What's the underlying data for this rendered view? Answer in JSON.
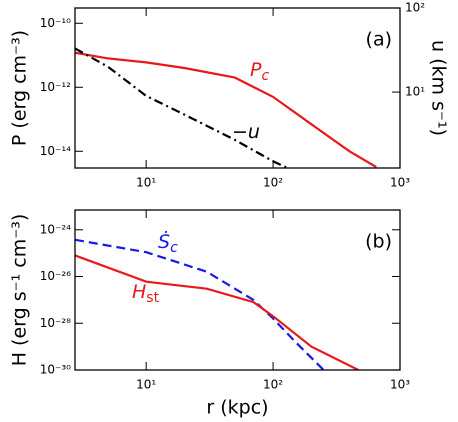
{
  "chart_data": [
    {
      "type": "line",
      "log_x": true,
      "log_y": true,
      "panel_label": "(a)",
      "ylabel": "P (erg cm⁻³)",
      "y2label": "u (km s⁻¹)",
      "xlim": [
        2.75,
        1000
      ],
      "xticks": [
        {
          "value": 10,
          "label": "10¹"
        },
        {
          "value": 100,
          "label": "10²"
        },
        {
          "value": 1000,
          "label": "10³"
        }
      ],
      "ylim": [
        3e-15,
        3e-10
      ],
      "yticks": [
        {
          "value": 1e-10,
          "label": "10⁻¹⁰"
        },
        {
          "value": 1e-12,
          "label": "10⁻¹²"
        },
        {
          "value": 1e-14,
          "label": "10⁻¹⁴"
        }
      ],
      "y2lim": [
        1.25,
        100
      ],
      "y2ticks": [
        {
          "value": 10,
          "label": "10¹"
        },
        {
          "value": 100,
          "label": "10²"
        }
      ],
      "series": [
        {
          "label": {
            "main": "P",
            "sub": "c"
          },
          "color": "#e8191c",
          "linestyle": "solid",
          "x": [
            2.75,
            5,
            10,
            20,
            50,
            100,
            200,
            400,
            650
          ],
          "values": [
            1.2e-11,
            8e-12,
            6e-12,
            4e-12,
            2e-12,
            5e-13,
            7e-14,
            1e-14,
            3.2e-15
          ]
        },
        {
          "label": {
            "main": "−u",
            "sub": ""
          },
          "color": "#000000",
          "linestyle": "dashdot",
          "axis": "y2",
          "x": [
            2.75,
            5,
            10,
            20,
            50,
            100,
            130
          ],
          "values": [
            33,
            20,
            9,
            5.4,
            2.7,
            1.5,
            1.25
          ]
        }
      ]
    },
    {
      "type": "line",
      "log_x": true,
      "log_y": true,
      "panel_label": "(b)",
      "ylabel": "H (erg s⁻¹ cm⁻³)",
      "xlabel": "r (kpc)",
      "xlim": [
        2.75,
        1000
      ],
      "xticks": [
        {
          "value": 10,
          "label": "10¹"
        },
        {
          "value": 100,
          "label": "10²"
        },
        {
          "value": 1000,
          "label": "10³"
        }
      ],
      "ylim": [
        1e-30,
        7e-24
      ],
      "yticks": [
        {
          "value": 1e-24,
          "label": "10⁻²⁴"
        },
        {
          "value": 1e-26,
          "label": "10⁻²⁶"
        },
        {
          "value": 1e-28,
          "label": "10⁻²⁸"
        },
        {
          "value": 1e-30,
          "label": "10⁻³⁰"
        }
      ],
      "series": [
        {
          "label": {
            "main": "Ṡ",
            "sub": "c"
          },
          "color": "#1a1ae6",
          "linestyle": "dashed",
          "x": [
            2.75,
            10,
            30,
            70,
            100,
            150,
            250
          ],
          "values": [
            3.7e-25,
            1.1e-25,
            1.6e-26,
            1e-27,
            1.6e-28,
            1.6e-29,
            1e-30
          ]
        },
        {
          "label": {
            "main": "H",
            "sub": "st"
          },
          "color": "#e8191c",
          "linestyle": "solid",
          "x": [
            2.75,
            10,
            30,
            70,
            100,
            200,
            470
          ],
          "values": [
            8e-26,
            6e-27,
            3e-27,
            8e-28,
            2e-28,
            1e-29,
            1e-30
          ]
        }
      ]
    }
  ]
}
